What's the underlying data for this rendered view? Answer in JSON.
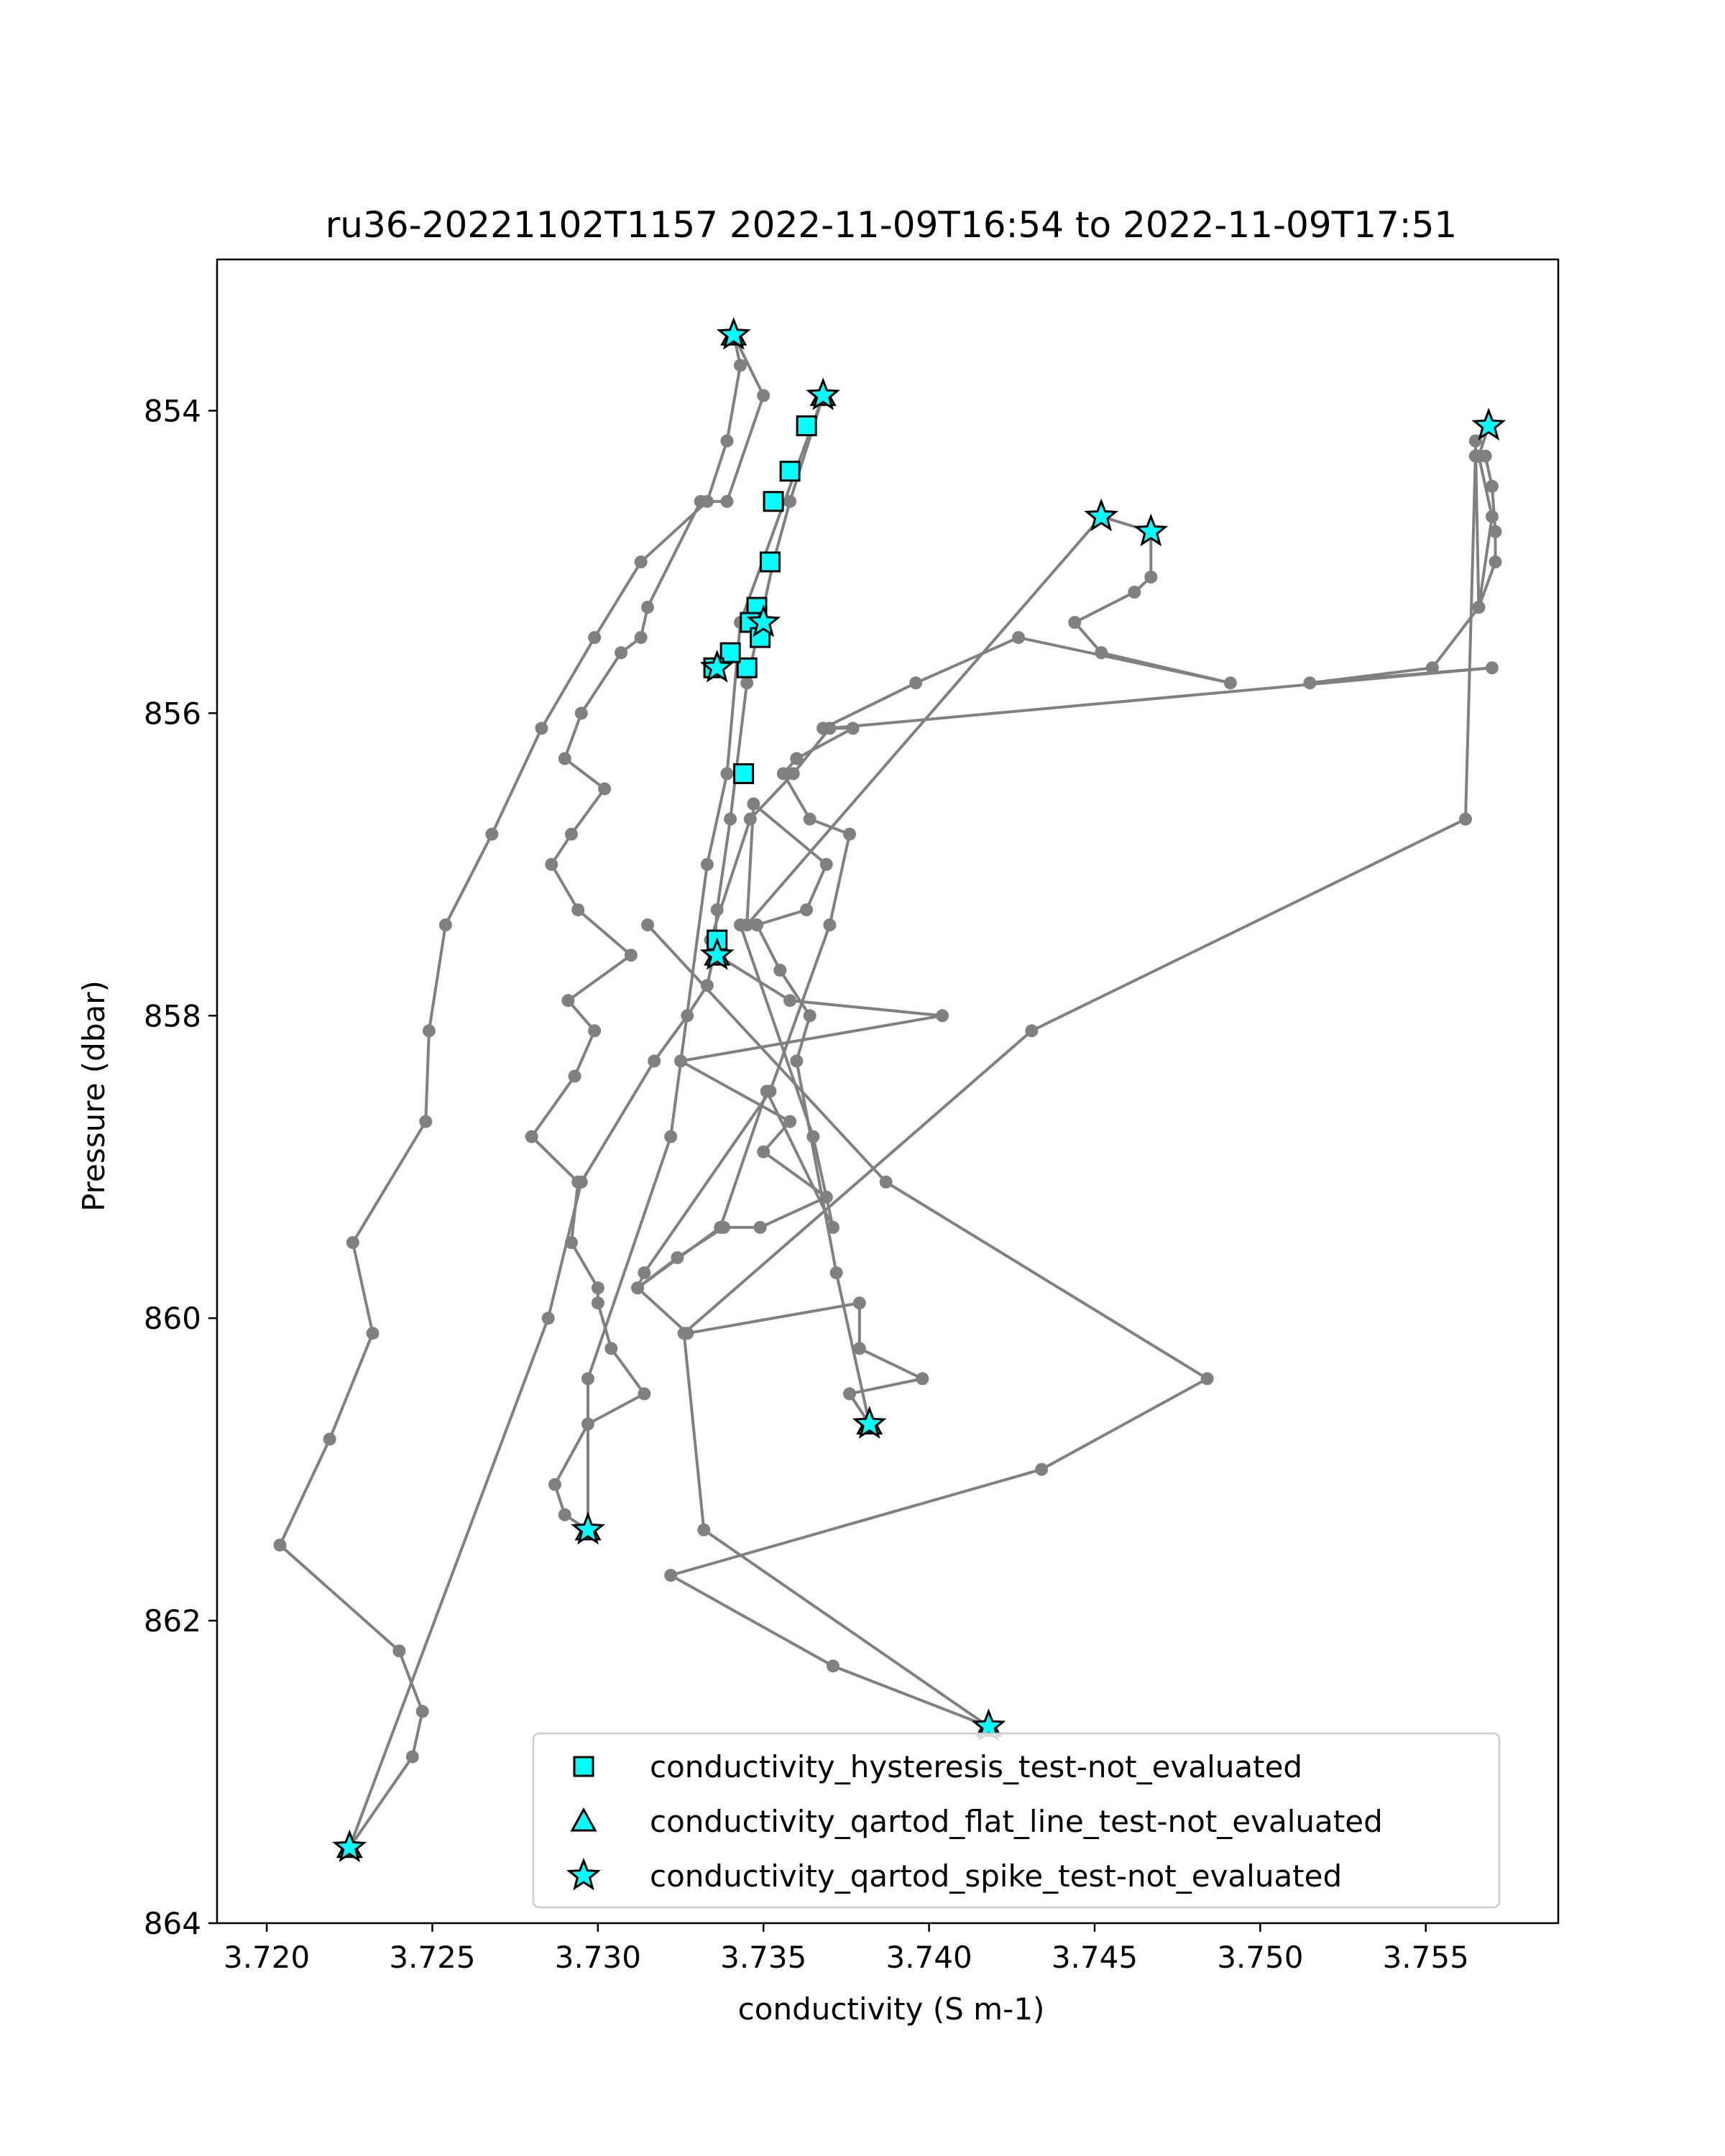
{
  "chart_data": {
    "type": "scatter",
    "title": "ru36-20221102T1157 2022-11-09T16:54 to 2022-11-09T17:51",
    "xlabel": "conductivity (S m-1)",
    "ylabel": "Pressure (dbar)",
    "xlim": [
      3.7185,
      3.759
    ],
    "ylim": [
      864.0,
      853.0
    ],
    "y_inverted": true,
    "grid": false,
    "legend_position": "lower right",
    "xticks": [
      3.72,
      3.725,
      3.73,
      3.735,
      3.74,
      3.745,
      3.75,
      3.755
    ],
    "xtick_labels": [
      "3.720",
      "3.725",
      "3.730",
      "3.735",
      "3.740",
      "3.745",
      "3.750",
      "3.755"
    ],
    "yticks": [
      854,
      856,
      858,
      860,
      862,
      864
    ],
    "ytick_labels": [
      "854",
      "856",
      "858",
      "860",
      "862",
      "864"
    ],
    "colors": {
      "profile_line": "#808080",
      "flag_fill": "#00ffff",
      "flag_edge": "#000000"
    },
    "profiles": [
      {
        "x": [
          3.7225,
          3.7244,
          3.7247,
          3.724,
          3.7204,
          3.7219,
          3.7232,
          3.7226,
          3.7248,
          3.7249,
          3.7254,
          3.7268,
          3.7283,
          3.7299,
          3.7313,
          3.7333,
          3.7339,
          3.7343,
          3.7341
        ],
        "y": [
          863.5,
          862.9,
          862.6,
          862.2,
          861.5,
          860.8,
          860.1,
          859.5,
          858.7,
          858.1,
          857.4,
          856.8,
          856.1,
          855.5,
          855.0,
          854.6,
          854.2,
          853.7,
          853.5
        ]
      },
      {
        "x": [
          3.7341,
          3.735,
          3.7339,
          3.7331,
          3.7315,
          3.7313,
          3.7307,
          3.7295,
          3.729,
          3.7302,
          3.7292,
          3.7286,
          3.7294,
          3.731,
          3.7291,
          3.7299,
          3.7293,
          3.728,
          3.7294,
          3.7292,
          3.73,
          3.73,
          3.7304,
          3.7314,
          3.7297,
          3.7287,
          3.729,
          3.7297
        ],
        "y": [
          853.5,
          853.9,
          854.6,
          854.6,
          855.3,
          855.5,
          855.6,
          856.0,
          856.3,
          856.5,
          856.8,
          857.0,
          857.3,
          857.6,
          857.9,
          858.1,
          858.4,
          858.8,
          859.1,
          859.5,
          859.8,
          859.9,
          860.2,
          860.5,
          860.7,
          861.1,
          861.3,
          861.4
        ]
      },
      {
        "x": [
          3.7297,
          3.7297,
          3.7322,
          3.7333,
          3.7339,
          3.7343,
          3.7368
        ],
        "y": [
          861.4,
          860.4,
          858.8,
          857.0,
          856.4,
          855.4,
          853.9
        ]
      },
      {
        "x": [
          3.7368,
          3.7358,
          3.7353,
          3.7345,
          3.734,
          3.7336,
          3.7335,
          3.7333,
          3.7327,
          3.7317,
          3.7295,
          3.7285,
          3.7225
        ],
        "y": [
          853.9,
          854.6,
          855.0,
          855.8,
          856.7,
          857.3,
          857.6,
          857.8,
          858.0,
          858.3,
          859.1,
          860.0,
          863.5
        ]
      },
      {
        "x": [
          3.7336,
          3.7358,
          3.7404,
          3.7325,
          3.7358,
          3.735,
          3.7369,
          3.7349,
          3.7338,
          3.7324,
          3.7312,
          3.7314,
          3.7352,
          3.737,
          3.7376,
          3.7364,
          3.7356,
          3.736,
          3.7377,
          3.7368
        ],
        "y": [
          857.6,
          857.9,
          858.0,
          858.3,
          858.7,
          858.9,
          859.2,
          859.4,
          859.4,
          859.6,
          859.8,
          859.7,
          858.5,
          857.4,
          856.8,
          856.7,
          856.4,
          856.3,
          856.1,
          856.1
        ]
      },
      {
        "x": [
          3.7368,
          3.7396,
          3.7427,
          3.7491,
          3.7452,
          3.7444,
          3.7462,
          3.7467,
          3.7467
        ],
        "y": [
          856.1,
          855.8,
          855.5,
          855.8,
          855.6,
          855.4,
          855.2,
          855.1,
          854.8
        ]
      },
      {
        "x": [
          3.7467,
          3.7452,
          3.7345,
          3.7347,
          3.7369,
          3.7363,
          3.7348,
          3.7355,
          3.7364,
          3.736,
          3.7372,
          3.7382
        ],
        "y": [
          854.8,
          854.7,
          857.4,
          856.6,
          857.0,
          857.3,
          857.4,
          857.7,
          858.0,
          858.3,
          859.7,
          860.7
        ]
      },
      {
        "x": [
          3.7382,
          3.7376,
          3.7398,
          3.7379,
          3.7379,
          3.7327,
          3.7312,
          3.7337,
          3.7351,
          3.7371,
          3.7365,
          3.7343
        ],
        "y": [
          860.7,
          860.5,
          860.4,
          860.2,
          859.9,
          860.1,
          859.8,
          859.4,
          858.5,
          859.4,
          858.8,
          857.4
        ]
      },
      {
        "x": [
          3.7315,
          3.7387,
          3.7484,
          3.7434,
          3.7322,
          3.7371,
          3.7418
        ],
        "y": [
          857.4,
          859.1,
          860.4,
          861.0,
          861.7,
          862.3,
          862.7
        ]
      },
      {
        "x": [
          3.7418,
          3.7332,
          3.7326,
          3.7431,
          3.7562,
          3.7565,
          3.7568,
          3.757,
          3.7571,
          3.7571,
          3.7566,
          3.7565,
          3.7569
        ],
        "y": [
          862.7,
          861.4,
          860.1,
          858.1,
          856.7,
          854.3,
          854.3,
          854.5,
          854.8,
          855.0,
          855.3,
          854.2,
          854.1
        ]
      },
      {
        "x": [
          3.7569,
          3.7566,
          3.757,
          3.7566,
          3.7552,
          3.7515,
          3.757,
          3.737,
          3.7359,
          3.7346,
          3.7334
        ],
        "y": [
          854.1,
          854.3,
          854.7,
          855.3,
          855.7,
          855.8,
          855.7,
          856.1,
          856.4,
          856.7,
          857.5
        ]
      }
    ],
    "series": [
      {
        "name": "conductivity_hysteresis_test-not_evaluated",
        "marker": "square",
        "x": [
          3.7363,
          3.7358,
          3.7353,
          3.7352,
          3.7348,
          3.7346,
          3.7349,
          3.7345,
          3.734,
          3.7335,
          3.7344,
          3.7336
        ],
        "y": [
          854.1,
          854.4,
          854.6,
          855.0,
          855.3,
          855.4,
          855.5,
          855.7,
          855.6,
          855.7,
          856.4,
          857.5
        ]
      },
      {
        "name": "conductivity_qartod_flat_line_test-not_evaluated",
        "marker": "triangle",
        "x": [
          3.7341,
          3.7368,
          3.7336,
          3.7382,
          3.7297,
          3.7418,
          3.7225
        ],
        "y": [
          853.5,
          853.9,
          857.6,
          860.7,
          861.4,
          862.7,
          863.5
        ]
      },
      {
        "name": "conductivity_qartod_spike_test-not_evaluated",
        "marker": "star",
        "x": [
          3.7341,
          3.7368,
          3.7569,
          3.7452,
          3.7467,
          3.735,
          3.7336,
          3.7336,
          3.7382,
          3.7297,
          3.7418,
          3.7225
        ],
        "y": [
          853.5,
          853.9,
          854.1,
          854.7,
          854.8,
          855.4,
          855.7,
          857.6,
          860.7,
          861.4,
          862.7,
          863.5
        ]
      }
    ]
  }
}
